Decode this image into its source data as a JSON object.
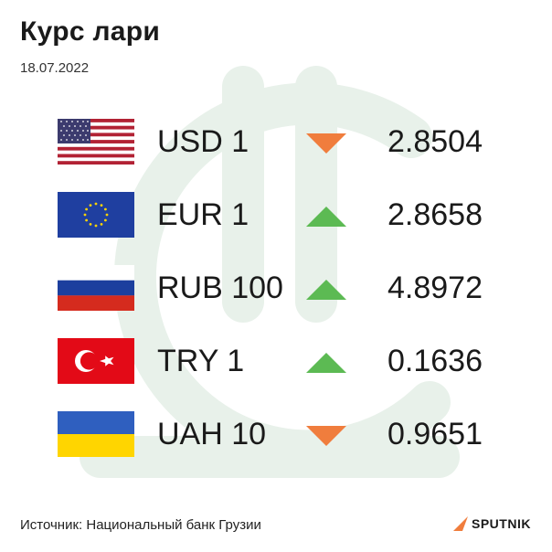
{
  "header": {
    "title": "Курс лари",
    "date": "18.07.2022"
  },
  "colors": {
    "down": "#f07d3d",
    "up": "#5cba53",
    "watermark": "#e8f1ea"
  },
  "rates": [
    {
      "flag_icon": "usa-flag-icon",
      "code": "USD 1",
      "direction": "down",
      "value": "2.8504"
    },
    {
      "flag_icon": "eu-flag-icon",
      "code": "EUR 1",
      "direction": "up",
      "value": "2.8658"
    },
    {
      "flag_icon": "russia-flag-icon",
      "code": "RUB 100",
      "direction": "up",
      "value": "4.8972"
    },
    {
      "flag_icon": "turkey-flag-icon",
      "code": "TRY 1",
      "direction": "up",
      "value": "0.1636"
    },
    {
      "flag_icon": "ukraine-flag-icon",
      "code": "UAH 10",
      "direction": "down",
      "value": "0.9651"
    }
  ],
  "footer": {
    "source": "Источник: Национальный банк Грузии",
    "brand": "SPUTNIK"
  }
}
